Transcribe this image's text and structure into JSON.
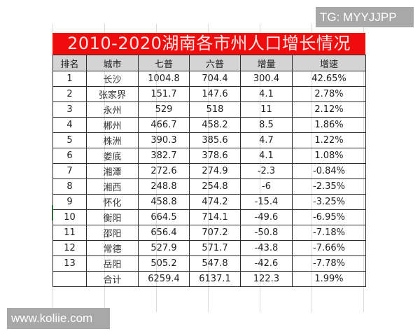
{
  "title": "2010-2020湖南各市州人口增长情况",
  "colors": {
    "title_background": "#ee0c0c",
    "title_text": "#fde4e4",
    "header_background": "#d4d4d4",
    "watermark_background": "#a8a8a8"
  },
  "table": {
    "headers": [
      "排名",
      "城市",
      "七普",
      "六普",
      "增量",
      "增速"
    ],
    "rows": [
      {
        "rank": "1",
        "city": "长沙",
        "census7": "1004.8",
        "census6": "704.4",
        "increase": "300.4",
        "growth": "42.65%"
      },
      {
        "rank": "2",
        "city": "张家界",
        "census7": "151.7",
        "census6": "147.6",
        "increase": "4.1",
        "growth": "2.78%"
      },
      {
        "rank": "3",
        "city": "永州",
        "census7": "529",
        "census6": "518",
        "increase": "11",
        "growth": "2.12%"
      },
      {
        "rank": "4",
        "city": "郴州",
        "census7": "466.7",
        "census6": "458.2",
        "increase": "8.5",
        "growth": "1.86%"
      },
      {
        "rank": "5",
        "city": "株洲",
        "census7": "390.3",
        "census6": "385.6",
        "increase": "4.7",
        "growth": "1.22%"
      },
      {
        "rank": "6",
        "city": "娄底",
        "census7": "382.7",
        "census6": "378.6",
        "increase": "4.1",
        "growth": "1.08%"
      },
      {
        "rank": "7",
        "city": "湘潭",
        "census7": "272.6",
        "census6": "274.9",
        "increase": "-2.3",
        "growth": "-0.84%"
      },
      {
        "rank": "8",
        "city": "湘西",
        "census7": "248.8",
        "census6": "254.8",
        "increase": "-6",
        "growth": "-2.35%"
      },
      {
        "rank": "9",
        "city": "怀化",
        "census7": "458.8",
        "census6": "474.2",
        "increase": "-15.4",
        "growth": "-3.25%"
      },
      {
        "rank": "10",
        "city": "衡阳",
        "census7": "664.5",
        "census6": "714.1",
        "increase": "-49.6",
        "growth": "-6.95%"
      },
      {
        "rank": "11",
        "city": "邵阳",
        "census7": "656.4",
        "census6": "707.2",
        "increase": "-50.8",
        "growth": "-7.18%"
      },
      {
        "rank": "12",
        "city": "常德",
        "census7": "527.9",
        "census6": "571.7",
        "increase": "-43.8",
        "growth": "-7.66%"
      },
      {
        "rank": "13",
        "city": "岳阳",
        "census7": "505.2",
        "census6": "547.8",
        "increase": "-42.6",
        "growth": "-7.78%"
      }
    ],
    "total": {
      "rank": "",
      "city": "合计",
      "census7": "6259.4",
      "census6": "6137.1",
      "increase": "122.3",
      "growth": "1.99%"
    }
  },
  "watermarks": {
    "top_right": "TG: MYYJJPP",
    "bottom_left": "www.koliie.com"
  }
}
